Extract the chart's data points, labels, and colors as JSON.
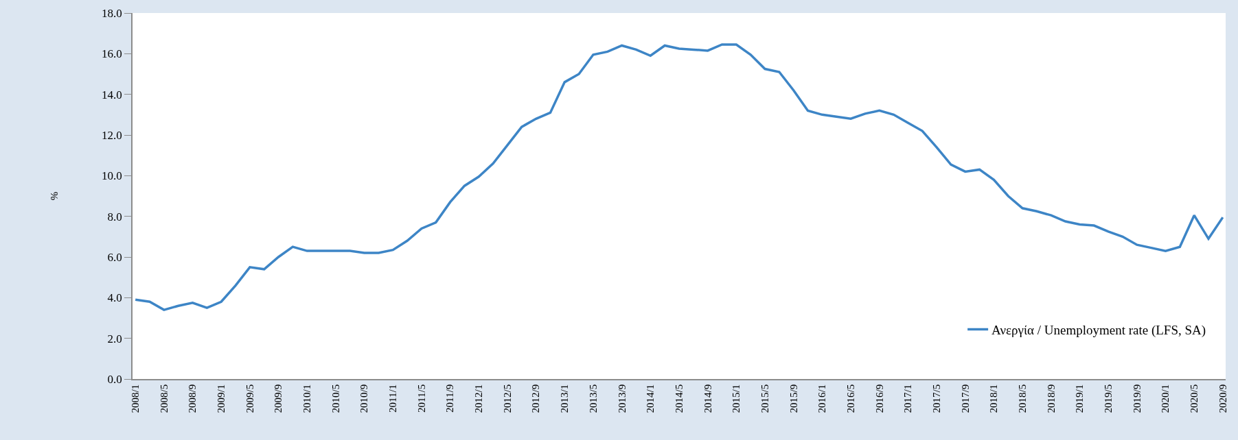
{
  "chart_data": {
    "type": "line",
    "ylabel": "%",
    "categories": [
      "2008/1",
      null,
      "2008/5",
      null,
      "2008/9",
      null,
      "2009/1",
      null,
      "2009/5",
      null,
      "2009/9",
      null,
      "2010/1",
      null,
      "2010/5",
      null,
      "2010/9",
      null,
      "2011/1",
      null,
      "2011/5",
      null,
      "2011/9",
      null,
      "2012/1",
      null,
      "2012/5",
      null,
      "2012/9",
      null,
      "2013/1",
      null,
      "2013/5",
      null,
      "2013/9",
      null,
      "2014/1",
      null,
      "2014/5",
      null,
      "2014/9",
      null,
      "2015/1",
      null,
      "2015/5",
      null,
      "2015/9",
      null,
      "2016/1",
      null,
      "2016/5",
      null,
      "2016/9",
      null,
      "2017/1",
      null,
      "2017/5",
      null,
      "2017/9",
      null,
      "2018/1",
      null,
      "2018/5",
      null,
      "2018/9",
      null,
      "2019/1",
      null,
      "2019/5",
      null,
      "2019/9",
      null,
      "2020/1",
      null,
      "2020/5",
      null,
      "2020/9"
    ],
    "series": [
      {
        "name": "Ανεργία / Unemployment rate (LFS, SA)",
        "color": "#3d85c6",
        "values": [
          3.9,
          3.8,
          3.4,
          3.6,
          3.75,
          3.5,
          3.8,
          4.6,
          5.5,
          5.4,
          6.0,
          6.5,
          6.3,
          6.3,
          6.3,
          6.3,
          6.2,
          6.2,
          6.35,
          6.8,
          7.4,
          7.7,
          8.7,
          9.5,
          9.95,
          10.6,
          11.5,
          12.4,
          12.8,
          13.1,
          14.6,
          15.0,
          15.95,
          16.1,
          16.4,
          16.2,
          15.9,
          16.4,
          16.25,
          16.2,
          16.15,
          16.45,
          16.45,
          15.95,
          15.25,
          15.1,
          14.2,
          13.2,
          13.0,
          12.9,
          12.8,
          13.05,
          13.2,
          13.0,
          12.6,
          12.2,
          11.4,
          10.55,
          10.2,
          10.3,
          9.8,
          9.0,
          8.4,
          8.25,
          8.05,
          7.75,
          7.6,
          7.55,
          7.25,
          7.0,
          6.6,
          6.45,
          6.3,
          6.5,
          8.05,
          6.9,
          7.95
        ]
      }
    ],
    "ylim": [
      0,
      18
    ],
    "yticks": [
      {
        "value": 0,
        "label": "0.0"
      },
      {
        "value": 2,
        "label": "2.0"
      },
      {
        "value": 4,
        "label": "4.0"
      },
      {
        "value": 6,
        "label": "6.0"
      },
      {
        "value": 8,
        "label": "8.0"
      },
      {
        "value": 10,
        "label": "10.0"
      },
      {
        "value": 12,
        "label": "12.0"
      },
      {
        "value": 14,
        "label": "14.0"
      },
      {
        "value": 16,
        "label": "16.0"
      },
      {
        "value": 18,
        "label": "18.0"
      }
    ],
    "grid": false,
    "legend": "bottom right",
    "marker": "none",
    "line_style": "solid"
  }
}
